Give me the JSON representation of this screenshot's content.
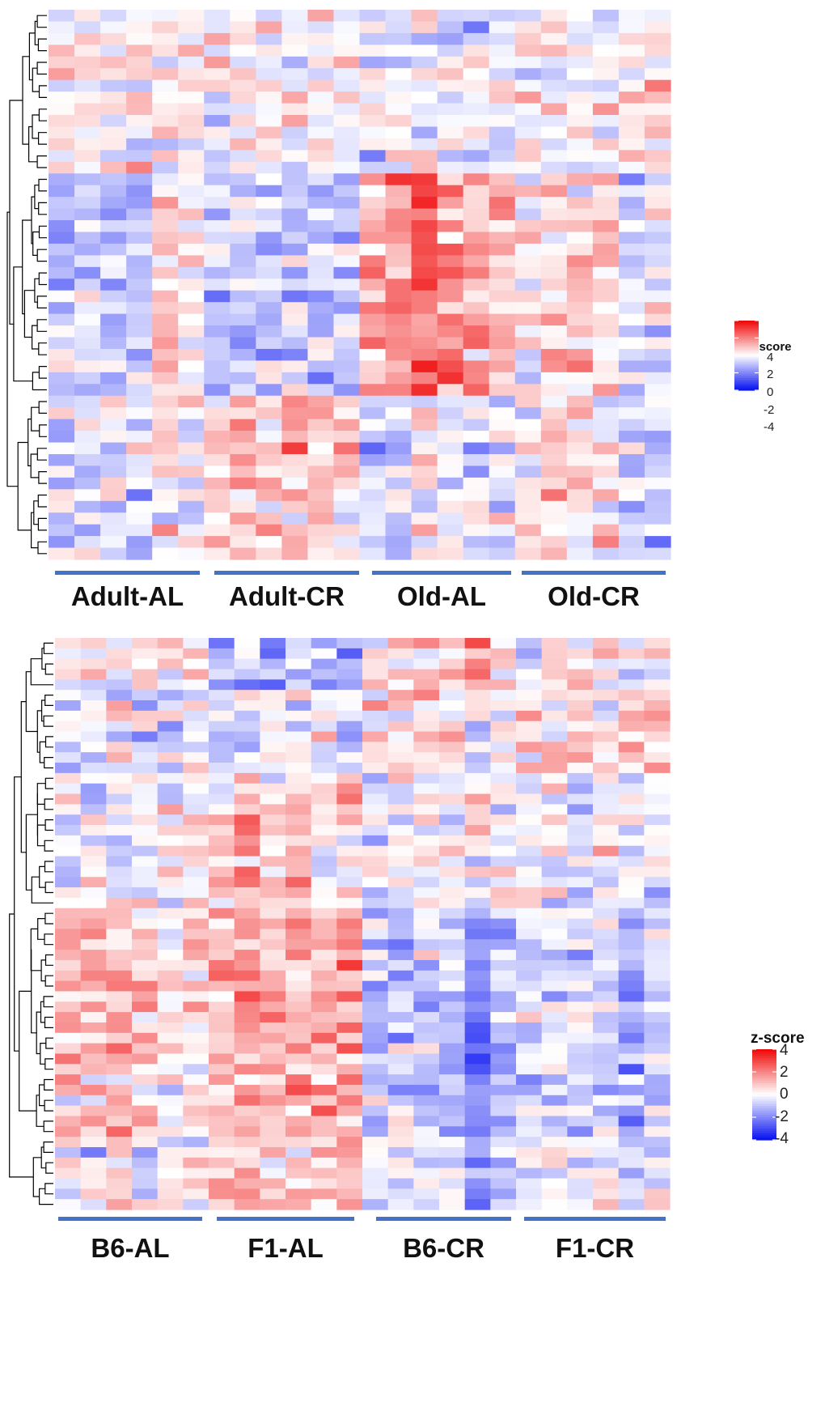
{
  "chart_data": [
    {
      "type": "heatmap",
      "panel": "top",
      "title": "",
      "n_rows": 47,
      "n_cols": 24,
      "groups": [
        {
          "label": "Adult-AL",
          "n_cols": 6
        },
        {
          "label": "Adult-CR",
          "n_cols": 6
        },
        {
          "label": "Old-AL",
          "n_cols": 6
        },
        {
          "label": "Old-CR",
          "n_cols": 6
        }
      ],
      "row_blocks": [
        {
          "rows": 14,
          "pattern": [
            0.2,
            0.2,
            0.2,
            0.2,
            0.2,
            0.2,
            0.0,
            0.0,
            0.0,
            0.0,
            0.0,
            0.0,
            -0.3,
            -0.3,
            -0.3,
            -0.3,
            -0.3,
            -0.3,
            0.1,
            0.1,
            0.1,
            0.1,
            0.1,
            0.1
          ]
        },
        {
          "rows": 19,
          "pattern": [
            -0.8,
            -1.0,
            -1.1,
            -0.9,
            0.9,
            0.5,
            -0.9,
            -0.9,
            -0.8,
            -1.0,
            -0.8,
            -1.1,
            1.1,
            1.6,
            2.7,
            1.5,
            1.2,
            1.1,
            0.1,
            0.7,
            0.6,
            0.7,
            -0.6,
            -0.1
          ]
        },
        {
          "rows": 14,
          "pattern": [
            -0.6,
            -0.7,
            -0.5,
            -0.7,
            0.2,
            -0.3,
            0.8,
            0.9,
            0.6,
            1.0,
            0.9,
            0.7,
            -0.6,
            -0.5,
            0.3,
            -0.4,
            -0.5,
            -0.3,
            0.6,
            0.4,
            0.5,
            0.2,
            -0.7,
            -0.6
          ]
        }
      ],
      "legend": {
        "title": "z-score",
        "ticks": [
          "4",
          "2",
          "0",
          "-2",
          "-4"
        ],
        "range": [
          -4,
          4
        ]
      },
      "color_scale": {
        "low": "#0b16f2",
        "mid": "#ffffff",
        "high": "#f00c0c"
      }
    },
    {
      "type": "heatmap",
      "panel": "bottom",
      "title": "",
      "n_rows": 55,
      "n_cols": 24,
      "groups": [
        {
          "label": "B6-AL",
          "n_cols": 6
        },
        {
          "label": "F1-AL",
          "n_cols": 6
        },
        {
          "label": "B6-CR",
          "n_cols": 6
        },
        {
          "label": "F1-CR",
          "n_cols": 6
        }
      ],
      "row_blocks": [
        {
          "rows": 5,
          "pattern": [
            0.0,
            0.4,
            -0.2,
            0.3,
            0.4,
            0.6,
            -1.6,
            -0.8,
            -1.3,
            -1.1,
            -1.2,
            -1.6,
            0.6,
            0.5,
            0.7,
            0.8,
            1.6,
            1.3,
            -0.3,
            0.1,
            -0.1,
            0.0,
            -0.6,
            0.2
          ]
        },
        {
          "rows": 8,
          "pattern": [
            -0.5,
            -0.3,
            -0.1,
            -0.4,
            -0.6,
            -0.5,
            -0.3,
            -0.2,
            0.0,
            -0.3,
            -0.2,
            -0.4,
            0.6,
            0.6,
            0.7,
            0.5,
            -0.3,
            0.0,
            0.8,
            0.6,
            0.7,
            0.6,
            0.3,
            0.9
          ]
        },
        {
          "rows": 13,
          "pattern": [
            -0.4,
            -0.2,
            -0.3,
            -0.3,
            0.1,
            -0.2,
            0.9,
            1.4,
            0.8,
            1.1,
            0.5,
            0.6,
            -0.5,
            -0.2,
            -0.1,
            -0.2,
            0.3,
            0.1,
            0.4,
            -0.2,
            -0.3,
            0.1,
            -0.5,
            -0.2
          ]
        },
        {
          "rows": 22,
          "pattern": [
            0.9,
            0.8,
            1.2,
            0.7,
            0.3,
            0.4,
            1.4,
            1.6,
            1.5,
            1.4,
            1.3,
            1.4,
            -1.0,
            -0.6,
            -0.8,
            -1.0,
            -2.1,
            -1.2,
            -0.5,
            -0.8,
            -0.7,
            -0.9,
            -1.6,
            -0.7
          ]
        },
        {
          "rows": 7,
          "pattern": [
            -0.3,
            -0.2,
            0.6,
            -0.1,
            -0.2,
            -0.3,
            0.9,
            1.0,
            0.7,
            0.6,
            0.8,
            1.2,
            -0.8,
            -0.4,
            -0.3,
            -0.4,
            -2.3,
            -0.9,
            0.1,
            0.3,
            -0.2,
            0.2,
            -0.4,
            -0.3
          ]
        }
      ],
      "legend": {
        "title": "z-score",
        "ticks": [
          "4",
          "2",
          "0",
          "-2",
          "-4"
        ],
        "range": [
          -4,
          4
        ]
      },
      "color_scale": {
        "low": "#0b16f2",
        "mid": "#ffffff",
        "high": "#f00c0c"
      }
    }
  ],
  "colors": {
    "group_bar": "#4472c4",
    "dendrogram": "#000000"
  }
}
